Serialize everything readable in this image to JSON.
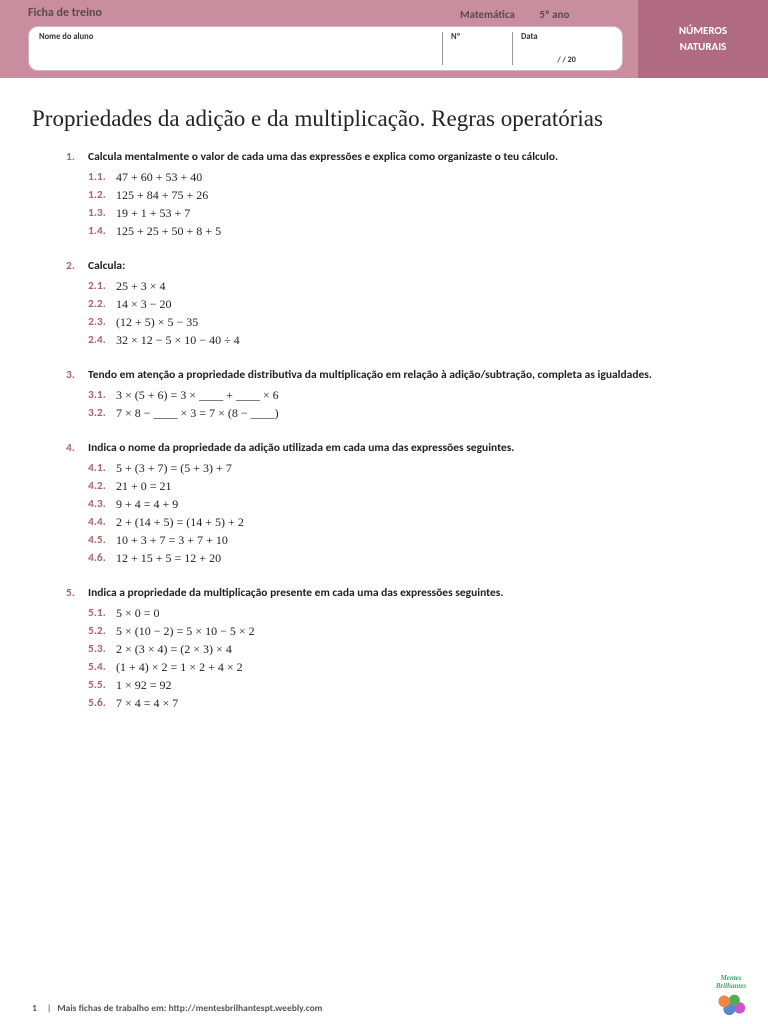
{
  "header": {
    "worksheet_label": "Ficha de treino",
    "subject": "Matemática",
    "grade": "5º ano",
    "topic_line1": "NÚMEROS",
    "topic_line2": "NATURAIS",
    "name_label": "Nome do aluno",
    "num_label": "Nº",
    "date_label": "Data",
    "date_value": "/       / 20"
  },
  "title": "Propriedades da adição e da multiplicação. Regras operatórias",
  "questions": [
    {
      "num": "1.",
      "prompt": "Calcula mentalmente o valor de cada uma das expressões e explica como organizaste o teu cálculo.",
      "items": [
        {
          "n": "1.1.",
          "e": "47 + 60 + 53 + 40"
        },
        {
          "n": "1.2.",
          "e": "125 + 84 + 75 + 26"
        },
        {
          "n": "1.3.",
          "e": "19 + 1 + 53 + 7"
        },
        {
          "n": "1.4.",
          "e": "125 + 25 + 50 + 8 + 5"
        }
      ]
    },
    {
      "num": "2.",
      "prompt": "Calcula:",
      "items": [
        {
          "n": "2.1.",
          "e": "25 + 3 × 4"
        },
        {
          "n": "2.2.",
          "e": "14 × 3 − 20"
        },
        {
          "n": "2.3.",
          "e": "(12 + 5) × 5 − 35"
        },
        {
          "n": "2.4.",
          "e": "32 × 12 − 5 × 10 − 40 ÷ 4"
        }
      ]
    },
    {
      "num": "3.",
      "prompt": "Tendo em atenção a propriedade distributiva da multiplicação em relação à adição/subtração, completa as igualdades.",
      "items": [
        {
          "n": "3.1.",
          "e": "3 × (5 + 6) = 3 × ____ + ____ × 6"
        },
        {
          "n": "3.2.",
          "e": "7 × 8 − ____ × 3 = 7 × (8 − ____)"
        }
      ]
    },
    {
      "num": "4.",
      "prompt": "Indica o nome da propriedade da adição utilizada em cada uma das expressões seguintes.",
      "items": [
        {
          "n": "4.1.",
          "e": "5 + (3 + 7) = (5 + 3) + 7"
        },
        {
          "n": "4.2.",
          "e": "21 + 0 = 21"
        },
        {
          "n": "4.3.",
          "e": "9 + 4 = 4 + 9"
        },
        {
          "n": "4.4.",
          "e": "2 + (14 + 5) = (14 + 5) + 2"
        },
        {
          "n": "4.5.",
          "e": "10 + 3 + 7 = 3 + 7 + 10"
        },
        {
          "n": "4.6.",
          "e": "12 + 15 + 5 = 12 + 20"
        }
      ]
    },
    {
      "num": "5.",
      "prompt": "Indica a propriedade da multiplicação presente em cada uma das expressões seguintes.",
      "items": [
        {
          "n": "5.1.",
          "e": "5 × 0 = 0"
        },
        {
          "n": "5.2.",
          "e": "5 × (10 − 2) = 5 × 10 − 5 × 2"
        },
        {
          "n": "5.3.",
          "e": "2 × (3 × 4) = (2 × 3) × 4"
        },
        {
          "n": "5.4.",
          "e": "(1 + 4) × 2 = 1 × 2 + 4 × 2"
        },
        {
          "n": "5.5.",
          "e": "1 × 92 = 92"
        },
        {
          "n": "5.6.",
          "e": "7 × 4 = 4 × 7"
        }
      ]
    }
  ],
  "footer": {
    "page": "1",
    "text": "Mais fichas de trabalho em: http://mentesbrilhantespt.weebly.com",
    "logo_text": "Mentes Brilhantes"
  },
  "colors": {
    "header_bg": "#c88ea0",
    "topic_bg": "#b06a82",
    "accent": "#a66"
  }
}
